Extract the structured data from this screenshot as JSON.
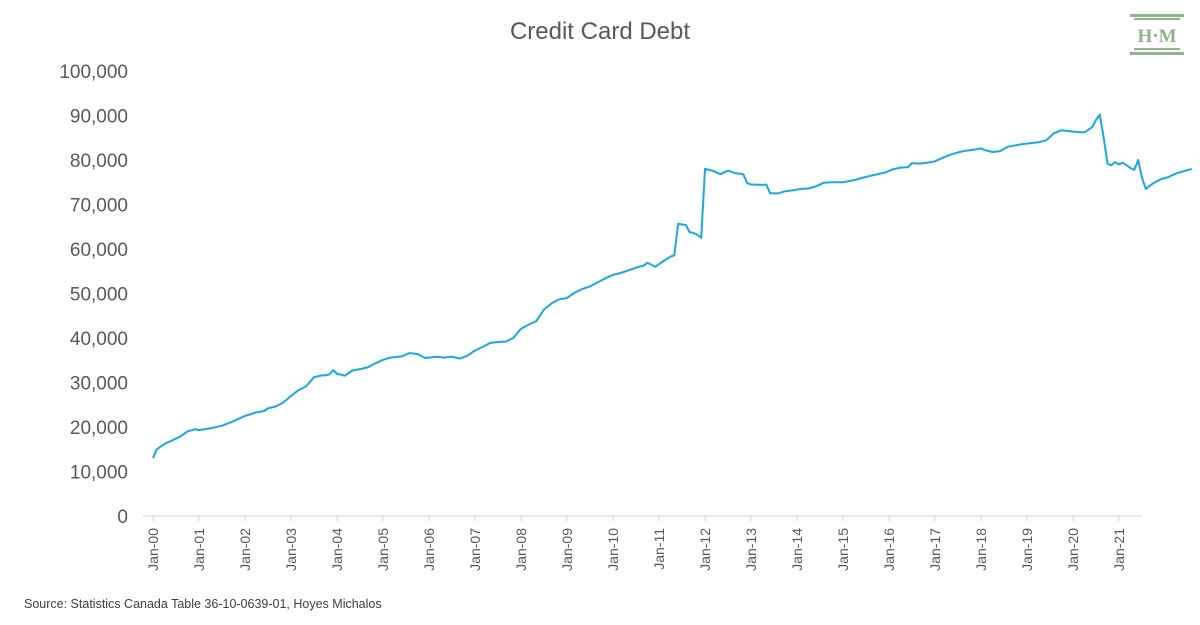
{
  "chart_data": {
    "type": "line",
    "title": "Credit Card Debt",
    "xlabel": "",
    "ylabel": "",
    "ylim": [
      0,
      100000
    ],
    "grid": false,
    "legend": "none",
    "y_ticks": [
      "0",
      "10,000",
      "20,000",
      "30,000",
      "40,000",
      "50,000",
      "60,000",
      "70,000",
      "80,000",
      "90,000",
      "100,000"
    ],
    "x_ticks": [
      "Jan-00",
      "Jan-01",
      "Jan-02",
      "Jan-03",
      "Jan-04",
      "Jan-05",
      "Jan-06",
      "Jan-07",
      "Jan-08",
      "Jan-09",
      "Jan-10",
      "Jan-11",
      "Jan-12",
      "Jan-13",
      "Jan-14",
      "Jan-15",
      "Jan-16",
      "Jan-17",
      "Jan-18",
      "Jan-19",
      "Jan-20",
      "Jan-21"
    ],
    "series_color": "#1aa9e0",
    "series": [
      {
        "points": [
          [
            "2000-01",
            13000
          ],
          [
            "2000-02",
            15000
          ],
          [
            "2000-04",
            16200
          ],
          [
            "2000-06",
            17000
          ],
          [
            "2000-08",
            17800
          ],
          [
            "2000-10",
            19000
          ],
          [
            "2000-12",
            19500
          ],
          [
            "2001-01",
            19300
          ],
          [
            "2001-04",
            19700
          ],
          [
            "2001-07",
            20300
          ],
          [
            "2001-10",
            21300
          ],
          [
            "2002-01",
            22500
          ],
          [
            "2002-04",
            23300
          ],
          [
            "2002-06",
            23600
          ],
          [
            "2002-07",
            24200
          ],
          [
            "2002-09",
            24600
          ],
          [
            "2002-11",
            25500
          ],
          [
            "2003-01",
            27000
          ],
          [
            "2003-03",
            28300
          ],
          [
            "2003-05",
            29200
          ],
          [
            "2003-07",
            31200
          ],
          [
            "2003-09",
            31600
          ],
          [
            "2003-10",
            31600
          ],
          [
            "2003-11",
            31800
          ],
          [
            "2003-12",
            32800
          ],
          [
            "2004-01",
            31900
          ],
          [
            "2004-02",
            31800
          ],
          [
            "2004-03",
            31500
          ],
          [
            "2004-05",
            32700
          ],
          [
            "2004-07",
            33000
          ],
          [
            "2004-09",
            33400
          ],
          [
            "2004-11",
            34300
          ],
          [
            "2005-01",
            35100
          ],
          [
            "2005-03",
            35600
          ],
          [
            "2005-06",
            35900
          ],
          [
            "2005-08",
            36600
          ],
          [
            "2005-10",
            36400
          ],
          [
            "2005-12",
            35500
          ],
          [
            "2006-03",
            35800
          ],
          [
            "2006-05",
            35600
          ],
          [
            "2006-07",
            35800
          ],
          [
            "2006-09",
            35400
          ],
          [
            "2006-11",
            36000
          ],
          [
            "2007-01",
            37200
          ],
          [
            "2007-03",
            38000
          ],
          [
            "2007-05",
            38900
          ],
          [
            "2007-07",
            39100
          ],
          [
            "2007-09",
            39200
          ],
          [
            "2007-11",
            40000
          ],
          [
            "2008-01",
            42100
          ],
          [
            "2008-03",
            43000
          ],
          [
            "2008-05",
            43800
          ],
          [
            "2008-07",
            46400
          ],
          [
            "2008-09",
            47800
          ],
          [
            "2008-11",
            48700
          ],
          [
            "2009-01",
            49000
          ],
          [
            "2009-03",
            50200
          ],
          [
            "2009-05",
            51000
          ],
          [
            "2009-07",
            51600
          ],
          [
            "2009-09",
            52500
          ],
          [
            "2009-11",
            53400
          ],
          [
            "2010-01",
            54200
          ],
          [
            "2010-03",
            54600
          ],
          [
            "2010-05",
            55200
          ],
          [
            "2010-07",
            55800
          ],
          [
            "2010-09",
            56300
          ],
          [
            "2010-10",
            56900
          ],
          [
            "2010-12",
            56000
          ],
          [
            "2011-02",
            57200
          ],
          [
            "2011-04",
            58300
          ],
          [
            "2011-05",
            58600
          ],
          [
            "2011-06",
            65700
          ],
          [
            "2011-07",
            65500
          ],
          [
            "2011-08",
            65400
          ],
          [
            "2011-09",
            63800
          ],
          [
            "2011-10",
            63600
          ],
          [
            "2011-11",
            63200
          ],
          [
            "2011-12",
            62500
          ],
          [
            "2012-01",
            78000
          ],
          [
            "2012-03",
            77600
          ],
          [
            "2012-05",
            76800
          ],
          [
            "2012-07",
            77600
          ],
          [
            "2012-09",
            77000
          ],
          [
            "2012-11",
            76800
          ],
          [
            "2012-12",
            74800
          ],
          [
            "2013-01",
            74500
          ],
          [
            "2013-04",
            74400
          ],
          [
            "2013-05",
            74500
          ],
          [
            "2013-06",
            72500
          ],
          [
            "2013-08",
            72500
          ],
          [
            "2013-10",
            73000
          ],
          [
            "2013-12",
            73200
          ],
          [
            "2014-02",
            73500
          ],
          [
            "2014-04",
            73600
          ],
          [
            "2014-06",
            74100
          ],
          [
            "2014-08",
            74900
          ],
          [
            "2014-10",
            75000
          ],
          [
            "2015-01",
            75000
          ],
          [
            "2015-04",
            75500
          ],
          [
            "2015-07",
            76200
          ],
          [
            "2015-10",
            76800
          ],
          [
            "2015-12",
            77200
          ],
          [
            "2016-02",
            77900
          ],
          [
            "2016-04",
            78300
          ],
          [
            "2016-06",
            78400
          ],
          [
            "2016-07",
            79300
          ],
          [
            "2016-09",
            79200
          ],
          [
            "2016-11",
            79400
          ],
          [
            "2017-01",
            79700
          ],
          [
            "2017-03",
            80500
          ],
          [
            "2017-05",
            81200
          ],
          [
            "2017-07",
            81700
          ],
          [
            "2017-09",
            82100
          ],
          [
            "2017-11",
            82300
          ],
          [
            "2018-01",
            82600
          ],
          [
            "2018-02",
            82200
          ],
          [
            "2018-04",
            81800
          ],
          [
            "2018-06",
            82000
          ],
          [
            "2018-08",
            83000
          ],
          [
            "2018-10",
            83300
          ],
          [
            "2018-12",
            83600
          ],
          [
            "2019-02",
            83800
          ],
          [
            "2019-04",
            84000
          ],
          [
            "2019-06",
            84400
          ],
          [
            "2019-08",
            86000
          ],
          [
            "2019-10",
            86700
          ],
          [
            "2019-12",
            86500
          ],
          [
            "2020-02",
            86300
          ],
          [
            "2020-04",
            86200
          ],
          [
            "2020-06",
            87400
          ],
          [
            "2020-07",
            89000
          ],
          [
            "2020-08",
            90200
          ],
          [
            "2020-09",
            85000
          ],
          [
            "2020-10",
            79200
          ],
          [
            "2020-11",
            78800
          ],
          [
            "2020-12",
            79500
          ],
          [
            "2021-01",
            79000
          ],
          [
            "2021-02",
            79400
          ],
          [
            "2021-04",
            78200
          ],
          [
            "2021-05",
            77800
          ],
          [
            "2021-06",
            80000
          ],
          [
            "2021-07",
            76000
          ],
          [
            "2021-08",
            73500
          ],
          [
            "2021-10",
            74800
          ],
          [
            "2021-12",
            75700
          ],
          [
            "2022-02",
            76200
          ],
          [
            "2022-04",
            77000
          ],
          [
            "2022-06",
            77500
          ],
          [
            "2022-08",
            78000
          ]
        ]
      }
    ],
    "source": "Source: Statistics Canada Table 36-10-0639-01, Hoyes Michalos"
  },
  "logo": {
    "text": "H·M",
    "color": "#8fb38a"
  }
}
